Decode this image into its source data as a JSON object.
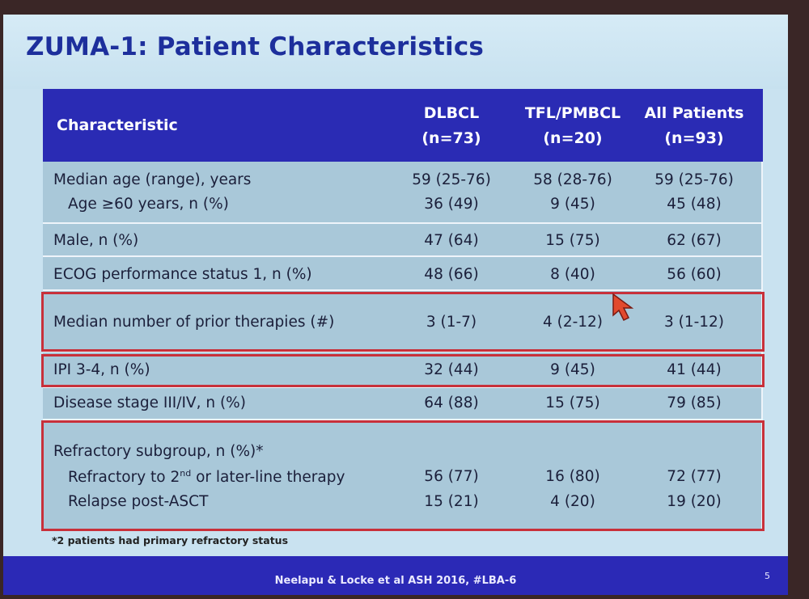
{
  "slide": {
    "title": "ZUMA-1: Patient Characteristics",
    "footnote": "*2 patients had primary refractory status",
    "citation": "Neelapu & Locke et al ASH 2016, #LBA-6",
    "page_number": "5"
  },
  "table": {
    "headers": {
      "characteristic": "Characteristic",
      "col1": [
        "DLBCL",
        "(n=73)"
      ],
      "col2": [
        "TFL/PMBCL",
        "(n=20)"
      ],
      "col3": [
        "All Patients",
        "(n=93)"
      ]
    },
    "rows": [
      {
        "label": "Median age (range), years",
        "values": [
          "59 (25-76)",
          "58 (28-76)",
          "59 (25-76)"
        ]
      },
      {
        "label": "Age ≥60 years, n (%)",
        "values": [
          "36 (49)",
          "9 (45)",
          "45 (48)"
        ]
      },
      {
        "label": "Male, n (%)",
        "values": [
          "47 (64)",
          "15 (75)",
          "62 (67)"
        ]
      },
      {
        "label": "ECOG performance status 1, n (%)",
        "values": [
          "48 (66)",
          "8 (40)",
          "56 (60)"
        ]
      },
      {
        "label": "Median number of prior therapies (#)",
        "values": [
          "3 (1-7)",
          "4 (2-12)",
          "3 (1-12)"
        ]
      },
      {
        "label": "IPI 3-4, n (%)",
        "values": [
          "32 (44)",
          "9 (45)",
          "41 (44)"
        ]
      },
      {
        "label": "Disease stage III/IV, n (%)",
        "values": [
          "64 (88)",
          "15 (75)",
          "79 (85)"
        ]
      },
      {
        "label": "Refractory subgroup, n (%)*",
        "values": [
          "",
          "",
          ""
        ]
      },
      {
        "label_pre": "Refractory to 2",
        "label_sup": "nd",
        "label_post": " or later-line therapy",
        "values": [
          "56 (77)",
          "16 (80)",
          "72 (77)"
        ]
      },
      {
        "label": "Relapse post-ASCT",
        "values": [
          "15 (21)",
          "4 (20)",
          "19 (20)"
        ]
      }
    ]
  },
  "colors": {
    "title": "#1d2f9c",
    "header_bg": "#2a2bb4",
    "highlight_border": "#c8303a",
    "table_bg": "#a9c8d9"
  }
}
